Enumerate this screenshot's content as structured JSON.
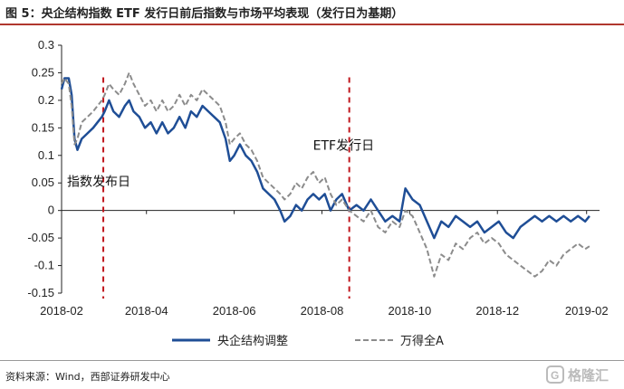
{
  "page": {
    "title": "图 5：央企结构指数 ETF 发行日前后指数与市场平均表现（发行日为基期）",
    "source": "资料来源：Wind，西部证券研发中心",
    "watermark": "格隆汇"
  },
  "chart_data": {
    "type": "line",
    "title": "",
    "xlabel": "",
    "ylabel": "",
    "ylim": [
      -0.15,
      0.3
    ],
    "xlim": [
      "2018-02-01",
      "2019-02-10"
    ],
    "yticks": [
      -0.15,
      -0.1,
      -0.05,
      0,
      0.05,
      0.1,
      0.15,
      0.2,
      0.25,
      0.3
    ],
    "ytick_labels": [
      "-0.15",
      "-0.1",
      "-0.05",
      "0",
      "0.05",
      "0.1",
      "0.15",
      "0.2",
      "0.25",
      "0.3"
    ],
    "xticks": [
      "2018-02-01",
      "2018-04-01",
      "2018-06-01",
      "2018-08-01",
      "2018-10-01",
      "2018-12-01",
      "2019-02-01"
    ],
    "xtick_labels": [
      "2018-02",
      "2018-04",
      "2018-06",
      "2018-08",
      "2018-10",
      "2018-12",
      "2019-02"
    ],
    "grid": false,
    "legend_position": "bottom",
    "annotations": [
      {
        "text": "指数发布日",
        "x": "2018-03-02"
      },
      {
        "text": "ETF发行日",
        "x": "2018-08-20"
      }
    ],
    "vlines": [
      {
        "x": "2018-03-02",
        "color": "#c0161c",
        "style": "dashed"
      },
      {
        "x": "2018-08-20",
        "color": "#c0161c",
        "style": "dashed"
      }
    ],
    "series": [
      {
        "name": "央企结构调整",
        "color": "#1f4e96",
        "style": "solid",
        "points": [
          [
            "2018-02-01",
            0.22
          ],
          [
            "2018-02-03",
            0.24
          ],
          [
            "2018-02-06",
            0.24
          ],
          [
            "2018-02-08",
            0.21
          ],
          [
            "2018-02-10",
            0.13
          ],
          [
            "2018-02-12",
            0.11
          ],
          [
            "2018-02-15",
            0.13
          ],
          [
            "2018-02-19",
            0.14
          ],
          [
            "2018-02-23",
            0.15
          ],
          [
            "2018-02-26",
            0.16
          ],
          [
            "2018-03-01",
            0.17
          ],
          [
            "2018-03-03",
            0.18
          ],
          [
            "2018-03-06",
            0.2
          ],
          [
            "2018-03-09",
            0.18
          ],
          [
            "2018-03-13",
            0.17
          ],
          [
            "2018-03-17",
            0.19
          ],
          [
            "2018-03-20",
            0.2
          ],
          [
            "2018-03-23",
            0.18
          ],
          [
            "2018-03-27",
            0.17
          ],
          [
            "2018-03-31",
            0.15
          ],
          [
            "2018-04-04",
            0.16
          ],
          [
            "2018-04-08",
            0.14
          ],
          [
            "2018-04-12",
            0.16
          ],
          [
            "2018-04-16",
            0.14
          ],
          [
            "2018-04-20",
            0.15
          ],
          [
            "2018-04-24",
            0.17
          ],
          [
            "2018-04-28",
            0.15
          ],
          [
            "2018-05-02",
            0.18
          ],
          [
            "2018-05-06",
            0.17
          ],
          [
            "2018-05-10",
            0.19
          ],
          [
            "2018-05-14",
            0.18
          ],
          [
            "2018-05-18",
            0.17
          ],
          [
            "2018-05-22",
            0.16
          ],
          [
            "2018-05-26",
            0.13
          ],
          [
            "2018-05-29",
            0.09
          ],
          [
            "2018-06-01",
            0.1
          ],
          [
            "2018-06-05",
            0.12
          ],
          [
            "2018-06-09",
            0.1
          ],
          [
            "2018-06-13",
            0.09
          ],
          [
            "2018-06-17",
            0.07
          ],
          [
            "2018-06-21",
            0.04
          ],
          [
            "2018-06-25",
            0.03
          ],
          [
            "2018-06-29",
            0.02
          ],
          [
            "2018-07-03",
            0.0
          ],
          [
            "2018-07-06",
            -0.02
          ],
          [
            "2018-07-10",
            -0.01
          ],
          [
            "2018-07-14",
            0.01
          ],
          [
            "2018-07-18",
            0.0
          ],
          [
            "2018-07-22",
            0.02
          ],
          [
            "2018-07-26",
            0.03
          ],
          [
            "2018-07-30",
            0.02
          ],
          [
            "2018-08-03",
            0.03
          ],
          [
            "2018-08-07",
            0.0
          ],
          [
            "2018-08-11",
            0.02
          ],
          [
            "2018-08-15",
            0.03
          ],
          [
            "2018-08-20",
            0.0
          ],
          [
            "2018-08-25",
            0.01
          ],
          [
            "2018-08-30",
            0.0
          ],
          [
            "2018-09-04",
            0.02
          ],
          [
            "2018-09-09",
            0.0
          ],
          [
            "2018-09-14",
            -0.02
          ],
          [
            "2018-09-19",
            -0.01
          ],
          [
            "2018-09-24",
            -0.02
          ],
          [
            "2018-09-28",
            0.04
          ],
          [
            "2018-10-03",
            0.02
          ],
          [
            "2018-10-08",
            0.01
          ],
          [
            "2018-10-13",
            -0.02
          ],
          [
            "2018-10-18",
            -0.05
          ],
          [
            "2018-10-23",
            -0.02
          ],
          [
            "2018-10-28",
            -0.03
          ],
          [
            "2018-11-02",
            -0.01
          ],
          [
            "2018-11-07",
            -0.02
          ],
          [
            "2018-11-12",
            -0.03
          ],
          [
            "2018-11-17",
            -0.02
          ],
          [
            "2018-11-22",
            -0.04
          ],
          [
            "2018-11-27",
            -0.03
          ],
          [
            "2018-12-02",
            -0.02
          ],
          [
            "2018-12-07",
            -0.04
          ],
          [
            "2018-12-12",
            -0.05
          ],
          [
            "2018-12-17",
            -0.03
          ],
          [
            "2018-12-22",
            -0.02
          ],
          [
            "2018-12-27",
            -0.01
          ],
          [
            "2019-01-01",
            -0.02
          ],
          [
            "2019-01-06",
            -0.01
          ],
          [
            "2019-01-11",
            -0.02
          ],
          [
            "2019-01-16",
            -0.01
          ],
          [
            "2019-01-21",
            -0.02
          ],
          [
            "2019-01-26",
            -0.01
          ],
          [
            "2019-01-31",
            -0.02
          ],
          [
            "2019-02-03",
            -0.01
          ]
        ]
      },
      {
        "name": "万得全A",
        "color": "#8c8c8c",
        "style": "dashed",
        "points": [
          [
            "2018-02-01",
            0.23
          ],
          [
            "2018-02-03",
            0.24
          ],
          [
            "2018-02-06",
            0.23
          ],
          [
            "2018-02-08",
            0.19
          ],
          [
            "2018-02-10",
            0.12
          ],
          [
            "2018-02-12",
            0.13
          ],
          [
            "2018-02-15",
            0.16
          ],
          [
            "2018-02-19",
            0.17
          ],
          [
            "2018-02-23",
            0.18
          ],
          [
            "2018-02-26",
            0.19
          ],
          [
            "2018-03-01",
            0.2
          ],
          [
            "2018-03-03",
            0.21
          ],
          [
            "2018-03-06",
            0.23
          ],
          [
            "2018-03-09",
            0.22
          ],
          [
            "2018-03-13",
            0.21
          ],
          [
            "2018-03-17",
            0.23
          ],
          [
            "2018-03-20",
            0.25
          ],
          [
            "2018-03-23",
            0.23
          ],
          [
            "2018-03-27",
            0.21
          ],
          [
            "2018-03-31",
            0.19
          ],
          [
            "2018-04-04",
            0.2
          ],
          [
            "2018-04-08",
            0.18
          ],
          [
            "2018-04-12",
            0.2
          ],
          [
            "2018-04-16",
            0.18
          ],
          [
            "2018-04-20",
            0.19
          ],
          [
            "2018-04-24",
            0.21
          ],
          [
            "2018-04-28",
            0.19
          ],
          [
            "2018-05-02",
            0.21
          ],
          [
            "2018-05-06",
            0.2
          ],
          [
            "2018-05-10",
            0.22
          ],
          [
            "2018-05-14",
            0.21
          ],
          [
            "2018-05-18",
            0.2
          ],
          [
            "2018-05-22",
            0.19
          ],
          [
            "2018-05-26",
            0.16
          ],
          [
            "2018-05-29",
            0.12
          ],
          [
            "2018-06-01",
            0.13
          ],
          [
            "2018-06-05",
            0.14
          ],
          [
            "2018-06-09",
            0.12
          ],
          [
            "2018-06-13",
            0.11
          ],
          [
            "2018-06-17",
            0.09
          ],
          [
            "2018-06-21",
            0.06
          ],
          [
            "2018-06-25",
            0.05
          ],
          [
            "2018-06-29",
            0.04
          ],
          [
            "2018-07-03",
            0.03
          ],
          [
            "2018-07-06",
            0.02
          ],
          [
            "2018-07-10",
            0.03
          ],
          [
            "2018-07-14",
            0.05
          ],
          [
            "2018-07-18",
            0.04
          ],
          [
            "2018-07-22",
            0.06
          ],
          [
            "2018-07-26",
            0.07
          ],
          [
            "2018-07-30",
            0.05
          ],
          [
            "2018-08-03",
            0.06
          ],
          [
            "2018-08-07",
            0.03
          ],
          [
            "2018-08-11",
            0.01
          ],
          [
            "2018-08-15",
            0.02
          ],
          [
            "2018-08-20",
            0.0
          ],
          [
            "2018-08-25",
            -0.01
          ],
          [
            "2018-08-30",
            -0.02
          ],
          [
            "2018-09-04",
            0.0
          ],
          [
            "2018-09-09",
            -0.03
          ],
          [
            "2018-09-14",
            -0.04
          ],
          [
            "2018-09-19",
            -0.02
          ],
          [
            "2018-09-24",
            -0.03
          ],
          [
            "2018-09-28",
            0.0
          ],
          [
            "2018-10-03",
            -0.01
          ],
          [
            "2018-10-08",
            -0.04
          ],
          [
            "2018-10-13",
            -0.07
          ],
          [
            "2018-10-18",
            -0.12
          ],
          [
            "2018-10-23",
            -0.08
          ],
          [
            "2018-10-28",
            -0.09
          ],
          [
            "2018-11-02",
            -0.06
          ],
          [
            "2018-11-07",
            -0.07
          ],
          [
            "2018-11-12",
            -0.05
          ],
          [
            "2018-11-17",
            -0.04
          ],
          [
            "2018-11-22",
            -0.06
          ],
          [
            "2018-11-27",
            -0.05
          ],
          [
            "2018-12-02",
            -0.06
          ],
          [
            "2018-12-07",
            -0.08
          ],
          [
            "2018-12-12",
            -0.09
          ],
          [
            "2018-12-17",
            -0.1
          ],
          [
            "2018-12-22",
            -0.11
          ],
          [
            "2018-12-27",
            -0.12
          ],
          [
            "2019-01-01",
            -0.11
          ],
          [
            "2019-01-06",
            -0.09
          ],
          [
            "2019-01-11",
            -0.1
          ],
          [
            "2019-01-16",
            -0.08
          ],
          [
            "2019-01-21",
            -0.07
          ],
          [
            "2019-01-26",
            -0.06
          ],
          [
            "2019-01-31",
            -0.07
          ],
          [
            "2019-02-03",
            -0.065
          ]
        ]
      }
    ]
  }
}
